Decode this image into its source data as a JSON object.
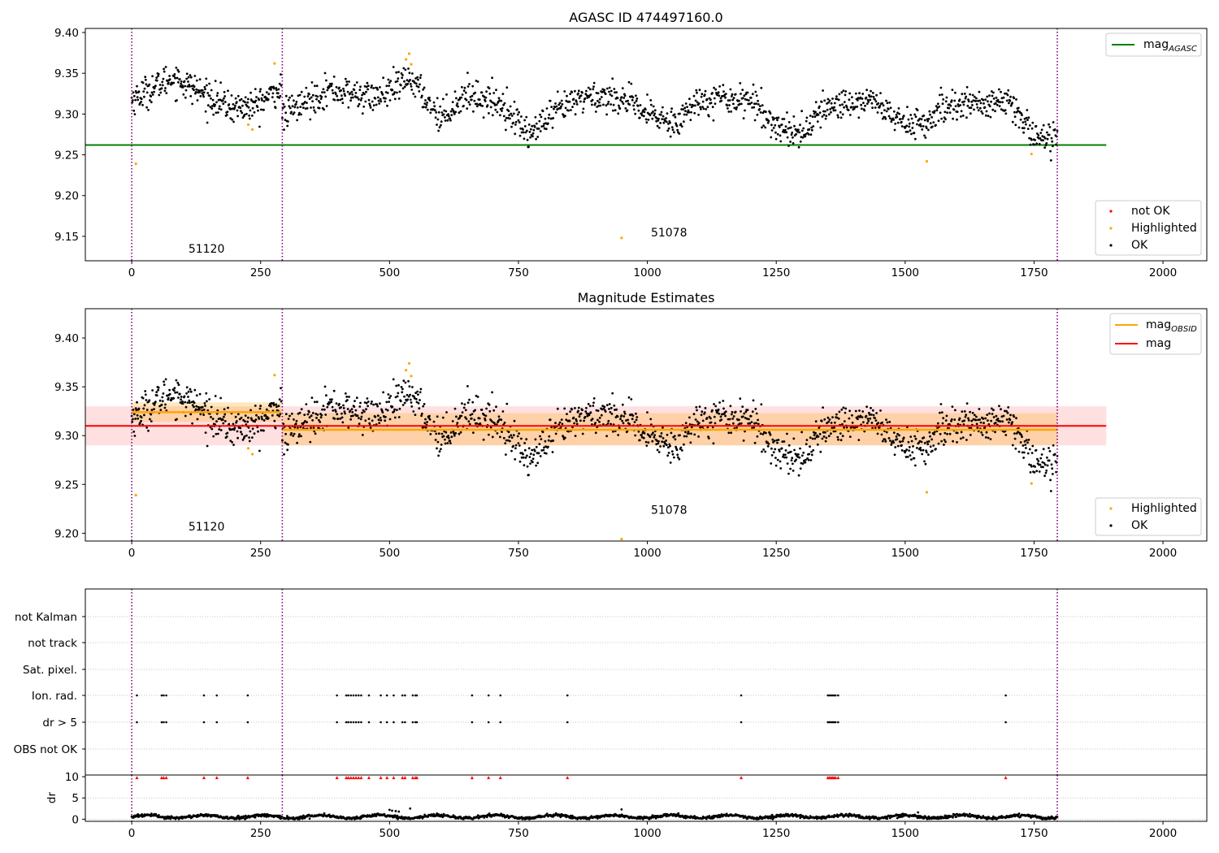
{
  "chart_data": [
    {
      "type": "scatter",
      "title": "AGASC ID 474497160.0",
      "xlim": [
        -90,
        2085
      ],
      "ylim": [
        9.12,
        9.405
      ],
      "xticks": [
        0,
        250,
        500,
        750,
        1000,
        1250,
        1500,
        1750,
        2000
      ],
      "xtick_labels": [
        "0",
        "250",
        "500",
        "750",
        "1000",
        "1250",
        "1500",
        "1750",
        "2000"
      ],
      "yticks": [
        9.15,
        9.2,
        9.25,
        9.3,
        9.35,
        9.4
      ],
      "ytick_labels": [
        "9.15",
        "9.20",
        "9.25",
        "9.30",
        "9.35",
        "9.40"
      ],
      "vlines": [
        0,
        292,
        1795
      ],
      "hline": {
        "name": "mag_AGASC",
        "y": 9.262,
        "x_range": [
          -90,
          1890
        ],
        "color": "#008000"
      },
      "annotations": [
        {
          "text": "51120",
          "x": 145,
          "y": 9.13
        },
        {
          "text": "51078",
          "x": 1042,
          "y": 9.15
        }
      ],
      "series_ok": {
        "name": "OK",
        "color": "#000000"
      },
      "series_highlighted": {
        "name": "Highlighted",
        "color": "#ffa500",
        "points": [
          [
            8,
            9.239
          ],
          [
            226,
            9.287
          ],
          [
            234,
            9.281
          ],
          [
            277,
            9.362
          ],
          [
            532,
            9.367
          ],
          [
            538,
            9.374
          ],
          [
            542,
            9.361
          ],
          [
            950,
            9.148
          ],
          [
            1542,
            9.242
          ],
          [
            1745,
            9.251
          ]
        ]
      },
      "series_not_ok": {
        "name": "not OK",
        "color": "#ff0000",
        "points": []
      },
      "segments": [
        {
          "x_range": [
            0,
            290
          ],
          "count": 290,
          "base": 9.322,
          "knots": [
            [
              0,
              9.318
            ],
            [
              80,
              9.345
            ],
            [
              190,
              9.308
            ],
            [
              240,
              9.31
            ],
            [
              290,
              9.332
            ]
          ]
        },
        {
          "x_range": [
            292,
            1795
          ],
          "count": 1360,
          "base": 9.31,
          "knots": [
            [
              292,
              9.298
            ],
            [
              380,
              9.33
            ],
            [
              470,
              9.32
            ],
            [
              510,
              9.33
            ],
            [
              540,
              9.345
            ],
            [
              575,
              9.315
            ],
            [
              600,
              9.296
            ],
            [
              650,
              9.325
            ],
            [
              720,
              9.312
            ],
            [
              770,
              9.275
            ],
            [
              830,
              9.305
            ],
            [
              880,
              9.322
            ],
            [
              950,
              9.32
            ],
            [
              990,
              9.302
            ],
            [
              1050,
              9.29
            ],
            [
              1110,
              9.32
            ],
            [
              1200,
              9.318
            ],
            [
              1250,
              9.285
            ],
            [
              1300,
              9.277
            ],
            [
              1350,
              9.31
            ],
            [
              1440,
              9.318
            ],
            [
              1480,
              9.293
            ],
            [
              1540,
              9.288
            ],
            [
              1590,
              9.312
            ],
            [
              1700,
              9.313
            ],
            [
              1760,
              9.27
            ],
            [
              1795,
              9.275
            ]
          ]
        }
      ],
      "legend_line": [
        {
          "name": "mag_AGASC",
          "color": "#008000"
        }
      ],
      "legend_points": [
        {
          "name": "not OK",
          "color": "#ff0000"
        },
        {
          "name": "Highlighted",
          "color": "#ffa500"
        },
        {
          "name": "OK",
          "color": "#000000"
        }
      ]
    },
    {
      "type": "scatter",
      "title": "Magnitude Estimates",
      "xlim": [
        -90,
        2085
      ],
      "ylim": [
        9.192,
        9.43
      ],
      "xticks": [
        0,
        250,
        500,
        750,
        1000,
        1250,
        1500,
        1750,
        2000
      ],
      "xtick_labels": [
        "0",
        "250",
        "500",
        "750",
        "1000",
        "1250",
        "1500",
        "1750",
        "2000"
      ],
      "yticks": [
        9.2,
        9.25,
        9.3,
        9.35,
        9.4
      ],
      "ytick_labels": [
        "9.20",
        "9.25",
        "9.30",
        "9.35",
        "9.40"
      ],
      "vlines": [
        0,
        292,
        1795
      ],
      "mag_line": {
        "name": "mag",
        "y": 9.31,
        "x_range": [
          -90,
          1890
        ],
        "color": "#ff0000",
        "band": [
          9.29,
          9.33
        ]
      },
      "mag_obsid": [
        {
          "x_range": [
            0,
            290
          ],
          "y": 9.324,
          "band": [
            9.314,
            9.334
          ]
        },
        {
          "x_range": [
            292,
            1795
          ],
          "y": 9.306,
          "band": [
            9.29,
            9.323
          ]
        }
      ],
      "annotations": [
        {
          "text": "51120",
          "x": 145,
          "y": 9.203
        },
        {
          "text": "51078",
          "x": 1042,
          "y": 9.22
        }
      ],
      "series_ok": {
        "name": "OK",
        "color": "#000000"
      },
      "series_highlighted": {
        "name": "Highlighted",
        "color": "#ffa500",
        "points": [
          [
            8,
            9.239
          ],
          [
            226,
            9.287
          ],
          [
            234,
            9.281
          ],
          [
            277,
            9.362
          ],
          [
            532,
            9.367
          ],
          [
            538,
            9.374
          ],
          [
            542,
            9.361
          ],
          [
            950,
            9.194
          ],
          [
            1542,
            9.242
          ],
          [
            1745,
            9.251
          ]
        ]
      },
      "legend_line": [
        {
          "name": "mag_OBSID",
          "color": "#ffa500"
        },
        {
          "name": "mag",
          "color": "#ff0000"
        }
      ],
      "legend_points": [
        {
          "name": "Highlighted",
          "color": "#ffa500"
        },
        {
          "name": "OK",
          "color": "#000000"
        }
      ]
    },
    {
      "type": "scatter",
      "xlim": [
        -90,
        2085
      ],
      "categories": [
        "OBS not OK",
        "dr > 5",
        "Ion. rad.",
        "Sat. pixel.",
        "not track",
        "not Kalman"
      ],
      "vlines": [
        0,
        292,
        1795
      ],
      "flag_x": [
        10,
        58,
        62,
        67,
        140,
        165,
        225,
        398,
        416,
        420,
        425,
        430,
        435,
        440,
        445,
        460,
        483,
        495,
        508,
        525,
        530,
        545,
        550,
        553,
        660,
        692,
        715,
        845,
        1182,
        1350,
        1353,
        1356,
        1359,
        1362,
        1365,
        1370,
        1695
      ],
      "flag_rows": [
        "dr > 5",
        "Ion. rad."
      ],
      "flag_color": "#000000"
    },
    {
      "type": "scatter",
      "ylabel": "dr",
      "xlim": [
        -90,
        2085
      ],
      "ylim": [
        -0.5,
        10.4
      ],
      "yticks": [
        0,
        5,
        10
      ],
      "ytick_labels": [
        "0",
        "5",
        "10"
      ],
      "xticks": [
        0,
        250,
        500,
        750,
        1000,
        1250,
        1500,
        1750,
        2000
      ],
      "xtick_labels": [
        "0",
        "250",
        "500",
        "750",
        "1000",
        "1250",
        "1500",
        "1750",
        "2000"
      ],
      "vlines": [
        0,
        292,
        1795
      ],
      "dr_base": 0.6,
      "dr_cap": 9.8,
      "dr_cap_color": "#ff0000",
      "dr_extra_points": [
        [
          500,
          2.2
        ],
        [
          505,
          2.0
        ],
        [
          512,
          1.9
        ],
        [
          518,
          1.8
        ],
        [
          540,
          2.5
        ],
        [
          950,
          2.3
        ],
        [
          1525,
          1.6
        ]
      ],
      "dr_count": 1650
    }
  ]
}
